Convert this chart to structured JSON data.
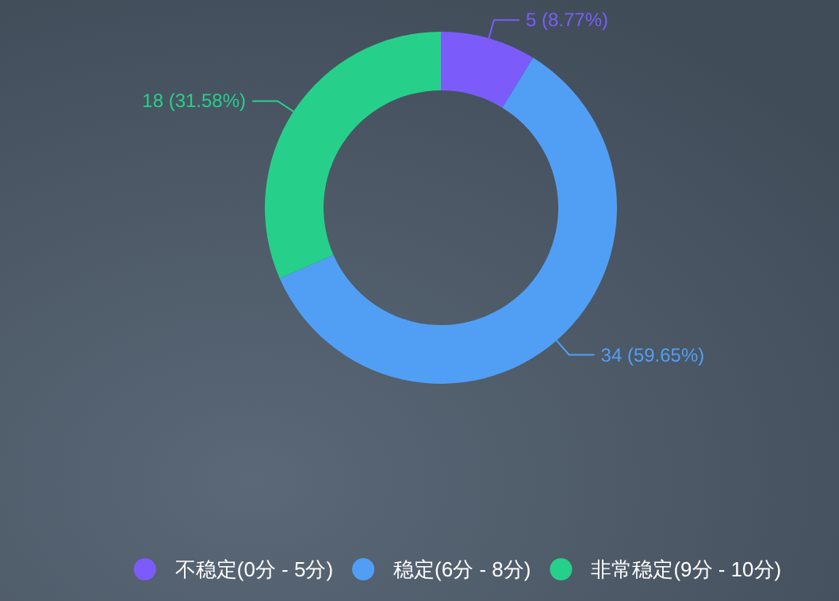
{
  "chart_data": {
    "type": "donut",
    "categories": [
      "不稳定(0分 - 5分)",
      "稳定(6分 - 8分)",
      "非常稳定(9分 - 10分)"
    ],
    "values": [
      5,
      34,
      18
    ],
    "colors": [
      "#7b5cfa",
      "#519ff5",
      "#26d08b"
    ],
    "value_labels": [
      "5 (8.77%)",
      "34 (59.65%)",
      "18 (31.58%)"
    ],
    "legend": "bottom"
  }
}
